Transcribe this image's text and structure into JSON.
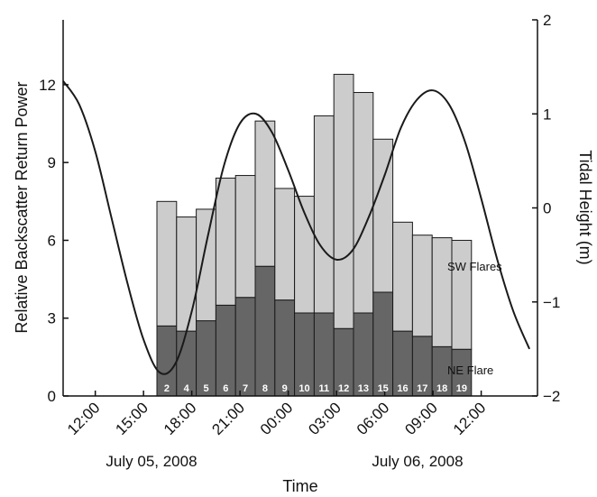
{
  "chart_data": {
    "type": "bar",
    "stacked": true,
    "xlabel": "Time",
    "ylabel_left": "Relative Backscatter Return Power",
    "ylabel_right": "Tidal Height (m)",
    "ylim_left": [
      0,
      14.5
    ],
    "ylim_right": [
      -2,
      2
    ],
    "left_ticks": [
      "0",
      "3",
      "6",
      "9",
      "12"
    ],
    "right_ticks": [
      "−2",
      "−1",
      "0",
      "1",
      "2"
    ],
    "time_ticks": [
      "12:00",
      "15:00",
      "18:00",
      "21:00",
      "00:00",
      "03:00",
      "06:00",
      "09:00",
      "12:00"
    ],
    "date_labels": [
      "July 05, 2008",
      "July 06, 2008"
    ],
    "bar_labels": [
      "2",
      "4",
      "5",
      "6",
      "7",
      "8",
      "9",
      "10",
      "11",
      "12",
      "13",
      "15",
      "16",
      "17",
      "18",
      "19"
    ],
    "series": [
      {
        "name": "NE Flare",
        "color": "#666666",
        "values": [
          2.7,
          2.5,
          2.9,
          3.5,
          3.8,
          5.0,
          3.7,
          3.2,
          3.2,
          2.6,
          3.2,
          4.0,
          2.5,
          2.3,
          1.9,
          1.8
        ]
      },
      {
        "name": "SW Flares",
        "color": "#cccccc",
        "values": [
          4.8,
          4.4,
          4.3,
          4.9,
          4.7,
          5.6,
          4.3,
          4.5,
          7.6,
          9.8,
          8.5,
          5.9,
          4.2,
          3.9,
          4.2,
          4.2
        ]
      }
    ],
    "tide_line": {
      "x_hours": [
        10,
        11,
        12,
        13,
        14,
        15,
        16,
        17,
        18,
        19,
        20,
        21,
        22,
        23,
        24,
        25,
        26,
        27,
        28,
        29,
        30,
        31,
        32,
        33,
        34,
        35,
        36,
        37,
        38,
        39
      ],
      "height_m": [
        1.35,
        1.1,
        0.6,
        -0.1,
        -0.8,
        -1.4,
        -1.75,
        -1.65,
        -1.1,
        -0.3,
        0.45,
        0.9,
        1.0,
        0.8,
        0.4,
        -0.05,
        -0.4,
        -0.55,
        -0.45,
        -0.1,
        0.35,
        0.85,
        1.15,
        1.25,
        1.1,
        0.7,
        0.1,
        -0.55,
        -1.1,
        -1.5
      ]
    }
  }
}
